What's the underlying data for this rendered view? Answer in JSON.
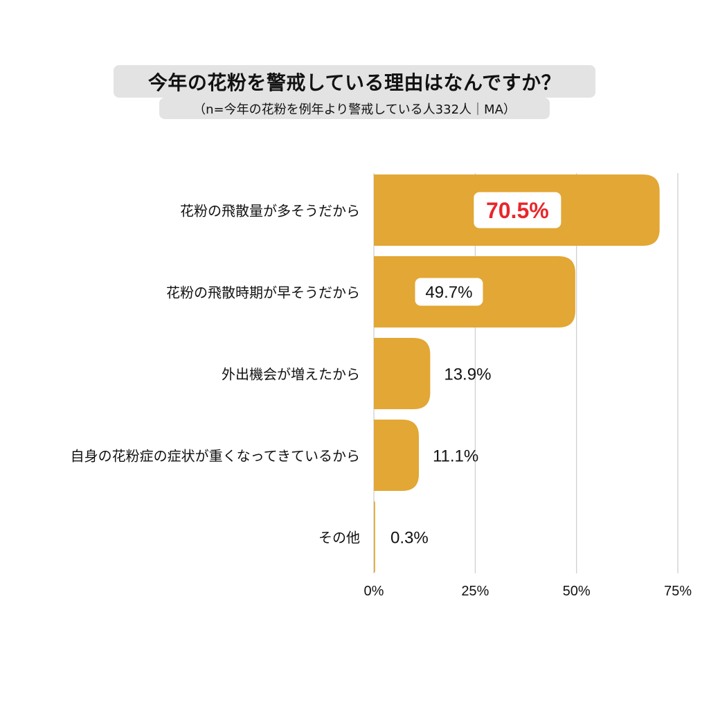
{
  "chart_data": {
    "type": "bar",
    "orientation": "horizontal",
    "title": "今年の花粉を警戒している理由はなんですか？",
    "subtitle": "（n=今年の花粉を例年より警戒している人332人｜MA）",
    "categories": [
      "花粉の飛散量が多そうだから",
      "花粉の飛散時期が早そうだから",
      "外出機会が増えたから",
      "自身の花粉症の症状が重くなってきているから",
      "その他"
    ],
    "values": [
      70.5,
      49.7,
      13.9,
      11.1,
      0.3
    ],
    "value_labels": [
      "70.5%",
      "49.7%",
      "13.9%",
      "11.1%",
      "0.3%"
    ],
    "highlight_index": 0,
    "xlim": [
      0,
      75
    ],
    "xticks": [
      0,
      25,
      50,
      75
    ],
    "xtick_labels": [
      "0%",
      "25%",
      "50%",
      "75%"
    ],
    "grid": true,
    "legend": "none",
    "colors": {
      "bar": "#e2a734",
      "highlight_text": "#e8262b",
      "label_box": "#ffffff",
      "grid": "#cccccc",
      "title_bg": "#e3e3e3",
      "text": "#111111"
    }
  }
}
